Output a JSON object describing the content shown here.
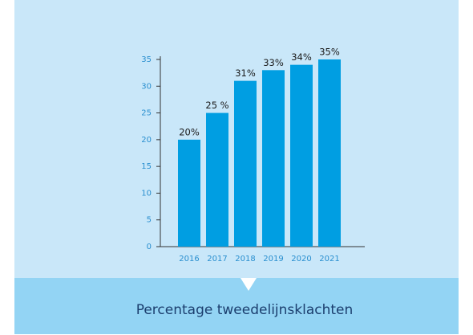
{
  "chart_data": {
    "type": "bar",
    "title": "Percentage tweedelijnsklachten",
    "categories": [
      "2016",
      "2017",
      "2018",
      "2019",
      "2020",
      "2021"
    ],
    "values": [
      20,
      25,
      31,
      33,
      34,
      35
    ],
    "value_labels": [
      "20%",
      "25 %",
      "31%",
      "33%",
      "34%",
      "35%"
    ],
    "color": "#009ee2",
    "ylim": [
      0,
      35
    ],
    "yticks": [
      0,
      5,
      10,
      15,
      20,
      25,
      30,
      35
    ]
  }
}
